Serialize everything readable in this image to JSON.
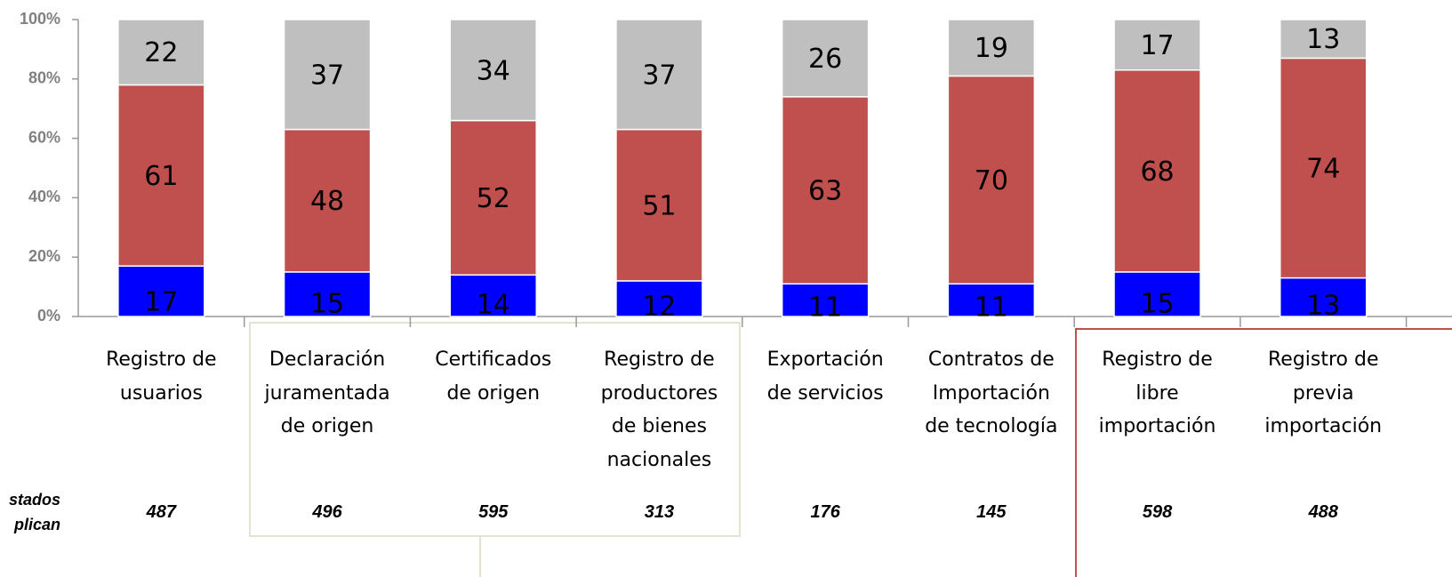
{
  "chart_data": {
    "type": "stacked_bar",
    "categories": [
      "Registro de\nusuarios",
      "Declaración\njuramentada\nde origen",
      "Certificados\nde origen",
      "Registro de\nproductores\nde bienes\nnacionales",
      "Exportación\nde servicios",
      "Contratos de\nImportación\nde tecnología",
      "Registro de\nlibre\nimportación",
      "Registro de\nprevia\nimportación"
    ],
    "series": [
      {
        "color": "#0000ff",
        "values": [
          17,
          15,
          14,
          12,
          11,
          11,
          15,
          13
        ]
      },
      {
        "color": "#c0504d",
        "values": [
          61,
          48,
          52,
          51,
          63,
          70,
          68,
          74
        ]
      },
      {
        "color": "#bfbfbf",
        "values": [
          22,
          37,
          34,
          37,
          26,
          19,
          17,
          13
        ]
      }
    ],
    "ylim": [
      0,
      100
    ],
    "yticks": [
      {
        "value": 0,
        "label": "0%"
      },
      {
        "value": 20,
        "label": "20%"
      },
      {
        "value": 40,
        "label": "40%"
      },
      {
        "value": 60,
        "label": "60%"
      },
      {
        "value": 80,
        "label": "80%"
      },
      {
        "value": 100,
        "label": "100%"
      }
    ],
    "row_label": "stados\nplican",
    "counts": [
      487,
      496,
      595,
      313,
      176,
      145,
      598,
      488
    ]
  }
}
